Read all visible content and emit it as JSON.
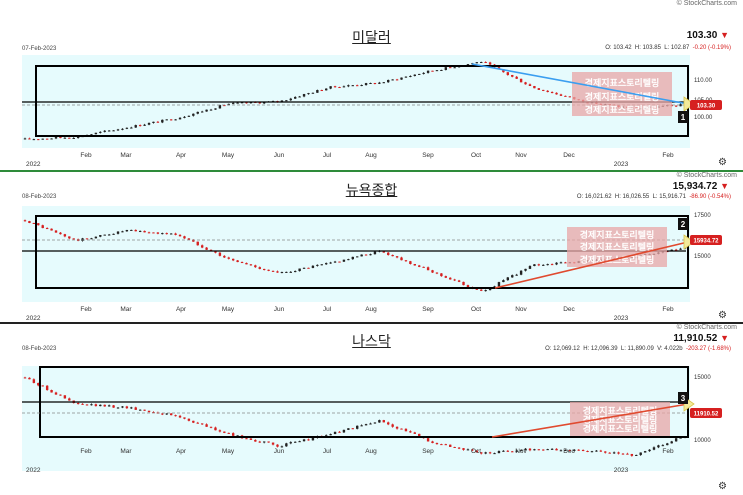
{
  "colors": {
    "plot_bg": "#e6fbfd",
    "up": "#222222",
    "down": "#d62020",
    "box": "#000000",
    "hline": "#000000",
    "dotted": "#888888",
    "blue_trend": "#3a9ef0",
    "red_trend": "#e04a2f",
    "price_tag": "#d62020",
    "overlay": "#e8a6a6",
    "overlay_text": "#ffffff",
    "badge": "#111111",
    "sep1": "#2e8b3a",
    "sep2": "#222222"
  },
  "overlay_text": "경제지표스토리텔링",
  "panels": [
    {
      "id": "dxy",
      "watermark": "© StockCharts.com",
      "title": "미달러",
      "date": "07-Feb-2023",
      "last": "103.30",
      "arrow": "▼",
      "ohlc": {
        "o": "O: 103.42",
        "h": "H: 103.85",
        "l": "L: 102.87",
        "chg": "-0.20 (-0.19%)"
      },
      "price_tag": "103.30",
      "badge": "1",
      "gear": "⚙",
      "year_left": "2022",
      "year_right": "2023",
      "months": [
        "Feb",
        "Mar",
        "Apr",
        "May",
        "Jun",
        "Jul",
        "Aug",
        "Sep",
        "Oct",
        "Nov",
        "Dec",
        "Feb"
      ],
      "yticks": [
        "110.00",
        "105.00",
        "100.00"
      ]
    },
    {
      "id": "nya",
      "watermark": "© StockCharts.com",
      "title": "뉴욕종합",
      "date": "08-Feb-2023",
      "last": "15,934.72",
      "arrow": "▼",
      "ohlc": {
        "o": "O: 16,021.62",
        "h": "H: 16,026.55",
        "l": "L: 15,916.71",
        "chg": "-86.90 (-0.54%)"
      },
      "price_tag": "15934.72",
      "badge": "2",
      "gear": "⚙",
      "year_left": "2022",
      "year_right": "2023",
      "months": [
        "Feb",
        "Mar",
        "Apr",
        "May",
        "Jun",
        "Jul",
        "Aug",
        "Sep",
        "Oct",
        "Nov",
        "Dec",
        "Feb"
      ],
      "yticks": [
        "17500",
        "15000"
      ]
    },
    {
      "id": "nasdaq",
      "watermark": "© StockCharts.com",
      "title": "나스닥",
      "date": "08-Feb-2023",
      "last": "11,910.52",
      "arrow": "▼",
      "ohlc": {
        "o": "O: 12,069.12",
        "h": "H: 12,096.39",
        "l": "L: 11,890.09",
        "v": "V: 4.022b",
        "chg": "-203.27 (-1.68%)"
      },
      "price_tag": "11910.52",
      "badge": "3",
      "gear": "⚙",
      "year_left": "2022",
      "year_right": "2023",
      "months": [
        "Feb",
        "Mar",
        "Apr",
        "May",
        "Jun",
        "Jul",
        "Aug",
        "Sep",
        "Oct",
        "Nov",
        "Dec",
        "Feb"
      ],
      "yticks": [
        "15000",
        "12500",
        "10000"
      ]
    }
  ],
  "chart_data": [
    {
      "type": "line",
      "title": "미달러",
      "ylim": [
        95,
        113
      ],
      "x": [
        "2022-01",
        "2022-02",
        "2022-03",
        "2022-04",
        "2022-05",
        "2022-06",
        "2022-07",
        "2022-08",
        "2022-09",
        "2022-10",
        "2022-11",
        "2022-12",
        "2023-01",
        "2023-02"
      ],
      "series": [
        {
          "values": [
            96.0,
            96.5,
            98.5,
            100.5,
            103.5,
            104.0,
            107.0,
            108.0,
            110.5,
            112.5,
            107.0,
            104.0,
            102.5,
            103.3
          ]
        }
      ]
    },
    {
      "type": "line",
      "title": "뉴욕종합",
      "ylim": [
        13500,
        17800
      ],
      "x": [
        "2022-01",
        "2022-02",
        "2022-03",
        "2022-04",
        "2022-05",
        "2022-06",
        "2022-07",
        "2022-08",
        "2022-09",
        "2022-10",
        "2022-11",
        "2022-12",
        "2023-01",
        "2023-02"
      ],
      "series": [
        {
          "values": [
            17300,
            16300,
            16800,
            16600,
            15400,
            14700,
            15200,
            15800,
            14800,
            13800,
            15100,
            15300,
            15500,
            15934.72
          ]
        }
      ]
    },
    {
      "type": "line",
      "title": "나스닥",
      "ylim": [
        9800,
        16300
      ],
      "x": [
        "2022-01",
        "2022-02",
        "2022-03",
        "2022-04",
        "2022-05",
        "2022-06",
        "2022-07",
        "2022-08",
        "2022-09",
        "2022-10",
        "2022-11",
        "2022-12",
        "2023-01",
        "2023-02"
      ],
      "series": [
        {
          "values": [
            15800,
            14000,
            13800,
            13200,
            12000,
            11200,
            12000,
            12900,
            11500,
            10700,
            11000,
            10900,
            10600,
            11910.52
          ]
        }
      ]
    }
  ]
}
